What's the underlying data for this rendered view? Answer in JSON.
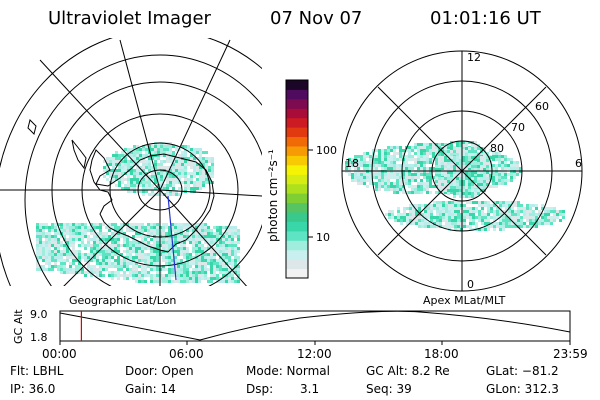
{
  "header": {
    "instrument": "Ultraviolet Imager",
    "date": "07 Nov 07",
    "time": "01:01:16 UT"
  },
  "left_map": {
    "label": "Geographic Lat/Lon"
  },
  "right_map": {
    "label": "Apex MLat/MLT",
    "mlt_labels": [
      "12",
      "18",
      "6",
      "0"
    ],
    "mlat_labels": [
      "60",
      "70",
      "80"
    ]
  },
  "colorbar": {
    "unit_label": "photon cm⁻²s⁻¹",
    "ticks": [
      "100",
      "10"
    ],
    "colors": [
      "#f2f2f2",
      "#dde6e8",
      "#c8f0ee",
      "#9feedd",
      "#5ee3c3",
      "#38d6a9",
      "#39c98d",
      "#57c463",
      "#7fcf34",
      "#aee01e",
      "#d6ec12",
      "#f6f405",
      "#f8ca03",
      "#f79b05",
      "#f06a08",
      "#e23a10",
      "#cc1b22",
      "#a80d3a",
      "#7c0b50",
      "#4f0b5d",
      "#1c0628"
    ]
  },
  "alt_plot": {
    "ylabel": "GC Alt",
    "yticks": [
      "9.0",
      "1.8"
    ],
    "xticks": [
      "00:00",
      "06:00",
      "12:00",
      "18:00",
      "23:59"
    ],
    "current_time_fraction": 0.042
  },
  "footer": {
    "filter": "Flt: LBHL",
    "door": "Door: Open",
    "mode": "Mode: Normal",
    "gc_alt": "GC Alt: 8.2 Re",
    "glat": "GLat: −81.2",
    "ip": "IP: 36.0",
    "gain": "Gain: 14",
    "dsp_label": "Dsp:",
    "dsp_value": "3.1",
    "seq": "Seq: 39",
    "glon": "GLon: 312.3"
  }
}
